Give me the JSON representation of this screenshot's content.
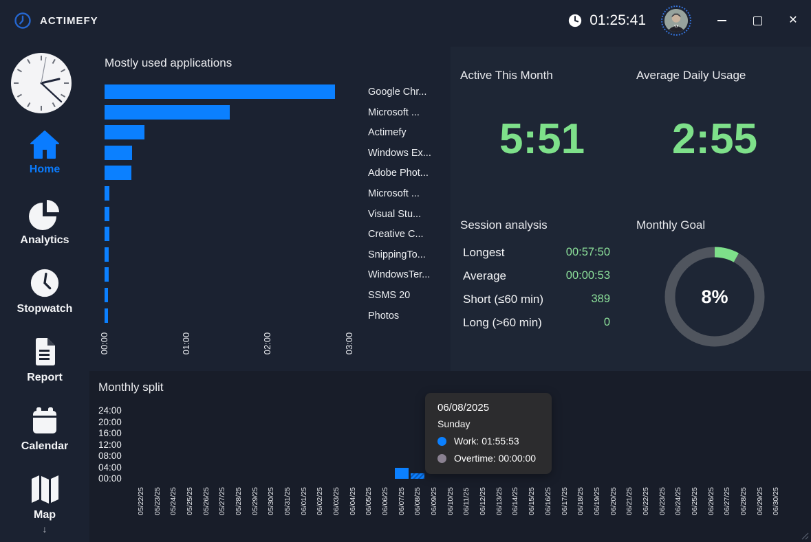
{
  "window": {
    "app_name": "ACTIMEFY",
    "clock": "01:25:41",
    "controls": [
      "minimize",
      "maximize",
      "close"
    ]
  },
  "sidebar": {
    "items": [
      {
        "label": "Home",
        "icon": "home-icon",
        "active": true
      },
      {
        "label": "Analytics",
        "icon": "pie-chart-icon",
        "active": false
      },
      {
        "label": "Stopwatch",
        "icon": "clock-icon",
        "active": false
      },
      {
        "label": "Report",
        "icon": "document-icon",
        "active": false
      },
      {
        "label": "Calendar",
        "icon": "calendar-icon",
        "active": false
      },
      {
        "label": "Map",
        "icon": "map-icon",
        "active": false
      }
    ]
  },
  "stats": {
    "active_title": "Active This Month",
    "active_value": "5:51",
    "avg_title": "Average Daily Usage",
    "avg_value": "2:55",
    "session": {
      "title": "Session analysis",
      "rows": [
        {
          "label": "Longest",
          "value": "00:57:50"
        },
        {
          "label": "Average",
          "value": "00:00:53"
        },
        {
          "label": "Short (≤60 min)",
          "value": "389"
        },
        {
          "label": "Long (>60 min)",
          "value": "0"
        }
      ]
    },
    "goal": {
      "title": "Monthly Goal",
      "percent": 8,
      "percent_label": "8%"
    }
  },
  "tooltip": {
    "date": "06/08/2025",
    "day": "Sunday",
    "entries": [
      {
        "text": "Work: 01:55:53",
        "color": "#0b80ff"
      },
      {
        "text": "Overtime: 00:00:00",
        "color": "#8a8191"
      }
    ]
  },
  "colors": {
    "accent_blue": "#0b80ff",
    "green": "#7ee08a",
    "donut_track": "#50555e",
    "tooltip_bg": "#2c2c2e",
    "overtime_gray": "#8a8191"
  },
  "chart_data": [
    {
      "type": "bar",
      "orientation": "horizontal",
      "title": "Mostly used applications",
      "categories": [
        "Google Chr...",
        "Microsoft ...",
        "Actimefy",
        "Windows Ex...",
        "Adobe Phot...",
        "Microsoft ...",
        "Visual Stu...",
        "Creative C...",
        "SnippingTo...",
        "WindowsTer...",
        "SSMS 20",
        "Photos"
      ],
      "values_hours": [
        2.82,
        1.53,
        0.49,
        0.34,
        0.33,
        0.062,
        0.055,
        0.055,
        0.05,
        0.05,
        0.045,
        0.04
      ],
      "x_ticks": [
        "00:00",
        "01:00",
        "02:00",
        "03:00"
      ],
      "xlim_hours": [
        0,
        3.1
      ],
      "bar_color": "#0b80ff",
      "grid": false,
      "legend": "app names right of plot"
    },
    {
      "type": "bar",
      "orientation": "vertical",
      "title": "Monthly split",
      "categories": [
        "05/22/25",
        "05/23/25",
        "05/24/25",
        "05/25/25",
        "05/26/25",
        "05/27/25",
        "05/28/25",
        "05/29/25",
        "05/30/25",
        "05/31/25",
        "06/01/25",
        "06/02/25",
        "06/03/25",
        "06/04/25",
        "06/05/25",
        "06/06/25",
        "06/07/25",
        "06/08/25",
        "06/09/25",
        "06/10/25",
        "06/11/25",
        "06/12/25",
        "06/13/25",
        "06/14/25",
        "06/15/25",
        "06/16/25",
        "06/17/25",
        "06/18/25",
        "06/19/25",
        "06/20/25",
        "06/21/25",
        "06/22/25",
        "06/23/25",
        "06/24/25",
        "06/25/25",
        "06/26/25",
        "06/27/25",
        "06/28/25",
        "06/29/25",
        "06/30/25"
      ],
      "series": [
        {
          "name": "Work",
          "color": "#0b80ff",
          "values_hours": [
            0,
            0,
            0,
            0,
            0,
            0,
            0,
            0,
            0,
            0,
            0,
            0,
            0,
            0,
            0,
            0,
            4.0,
            1.93,
            0,
            0,
            0,
            0,
            0,
            0,
            0,
            0,
            0,
            0,
            0,
            0,
            0,
            0,
            0,
            0,
            0,
            0,
            0,
            0,
            0,
            0
          ]
        },
        {
          "name": "Overtime",
          "color": "#8a8191",
          "values_hours": [
            0,
            0,
            0,
            0,
            0,
            0,
            0,
            0,
            0,
            0,
            0,
            0,
            0,
            0,
            0,
            0,
            0,
            0,
            0,
            0,
            0,
            0,
            0,
            0,
            0,
            0,
            0,
            0,
            0,
            0,
            0,
            0,
            0,
            0,
            0,
            0,
            0,
            0,
            0,
            0
          ]
        }
      ],
      "y_ticks": [
        "24:00",
        "20:00",
        "16:00",
        "12:00",
        "08:00",
        "04:00",
        "00:00"
      ],
      "ylim_hours": [
        0,
        24
      ],
      "highlighted_category": "06/08/25",
      "grid": false
    }
  ]
}
